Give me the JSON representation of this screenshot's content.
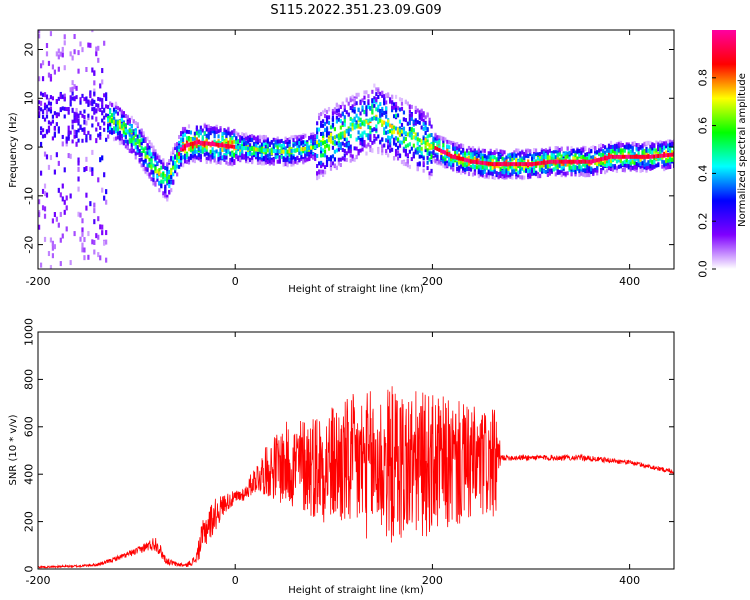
{
  "title": "S115.2022.351.23.09.G09",
  "chart_data": [
    {
      "type": "heatmap",
      "xlabel": "Height of straight line (km)",
      "ylabel": "Frequency (Hz)",
      "xlim": [
        -200,
        445
      ],
      "ylim": [
        -25,
        24
      ],
      "xticks": [
        -200,
        0,
        200,
        400
      ],
      "yticks": [
        20,
        10,
        0,
        -10,
        -20
      ],
      "grid": false,
      "colorbar": {
        "label": "Normalized spectral amplitude",
        "range": [
          0.0,
          1.0
        ],
        "ticks": [
          0.0,
          0.2,
          0.4,
          0.6,
          0.8
        ],
        "tick_labels": [
          "0.0",
          "0.2",
          "0.4",
          "0.6",
          "0.8"
        ],
        "colors": [
          "#ffffff",
          "#7f00ff",
          "#0000ff",
          "#00ffff",
          "#00ff00",
          "#ffff00",
          "#ff0000",
          "#ff00a0"
        ]
      },
      "ridge": {
        "x": [
          -140,
          -120,
          -100,
          -80,
          -70,
          -55,
          -40,
          -20,
          0,
          20,
          50,
          80,
          100,
          120,
          140,
          160,
          180,
          200,
          220,
          240,
          260,
          280,
          300,
          320,
          340,
          360,
          380,
          400,
          420,
          445
        ],
        "y": [
          6,
          5,
          1,
          -5,
          -7,
          0,
          1,
          0.5,
          0,
          -0.5,
          -1,
          0,
          2,
          4,
          6,
          4,
          2,
          0,
          -2,
          -3,
          -3.5,
          -3.5,
          -3.5,
          -3,
          -3,
          -3,
          -2,
          -2,
          -2,
          -1.5
        ]
      }
    },
    {
      "type": "line",
      "xlabel": "Height of straight line (km)",
      "ylabel": "SNR (10 * v/v)",
      "xlim": [
        -200,
        445
      ],
      "ylim": [
        0,
        1000
      ],
      "xticks": [
        -200,
        0,
        200,
        400
      ],
      "yticks": [
        0,
        200,
        400,
        600,
        800,
        1000
      ],
      "grid": false,
      "color": "#ff0000",
      "series": [
        {
          "x": [
            -200,
            -180,
            -160,
            -140,
            -130,
            -120,
            -110,
            -100,
            -90,
            -80,
            -75,
            -70,
            -60,
            -50,
            -40,
            -35,
            -30,
            -20,
            -10,
            0,
            10,
            20,
            30,
            40,
            50,
            60,
            80,
            100,
            120,
            140,
            160,
            180,
            200,
            220,
            240,
            265,
            270,
            300,
            350,
            400,
            445
          ],
          "y": [
            8,
            10,
            12,
            18,
            30,
            45,
            60,
            75,
            95,
            110,
            70,
            35,
            20,
            15,
            40,
            110,
            170,
            230,
            280,
            300,
            320,
            380,
            410,
            430,
            440,
            440,
            440,
            440,
            440,
            440,
            440,
            440,
            440,
            440,
            440,
            440,
            470,
            470,
            470,
            450,
            410
          ],
          "spread": [
            4,
            4,
            5,
            6,
            8,
            10,
            12,
            15,
            20,
            35,
            25,
            15,
            10,
            8,
            20,
            60,
            80,
            70,
            40,
            30,
            30,
            60,
            100,
            140,
            180,
            190,
            230,
            260,
            300,
            320,
            340,
            320,
            300,
            280,
            250,
            230,
            12,
            12,
            12,
            10,
            10
          ]
        }
      ]
    }
  ]
}
